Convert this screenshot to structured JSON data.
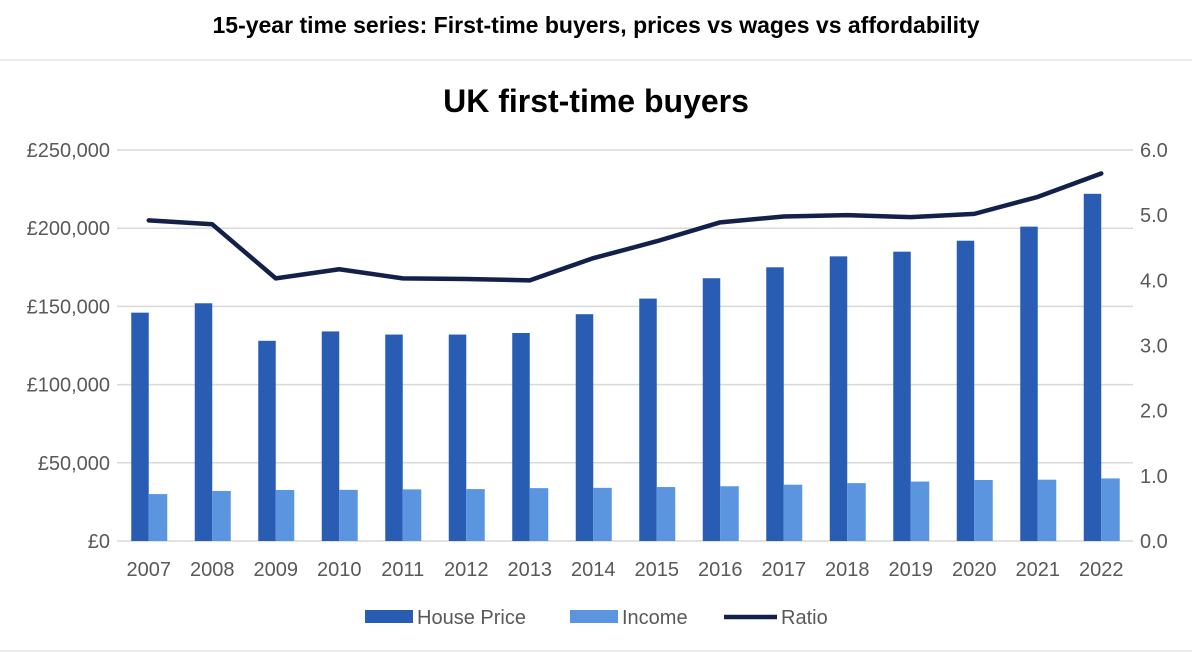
{
  "page_title": "15-year time series: First-time buyers, prices vs wages vs affordability",
  "colors": {
    "house_price": "#285DB3",
    "income": "#5B95E0",
    "ratio": "#13214A",
    "grid": "#D9D9D9"
  },
  "chart_data": {
    "type": "bar",
    "title": "UK first-time buyers",
    "categories": [
      "2007",
      "2008",
      "2009",
      "2010",
      "2011",
      "2012",
      "2013",
      "2014",
      "2015",
      "2016",
      "2017",
      "2018",
      "2019",
      "2020",
      "2021",
      "2022"
    ],
    "series": [
      {
        "name": "House Price",
        "type": "bar",
        "axis": "left",
        "values": [
          146000,
          152000,
          128000,
          134000,
          132000,
          132000,
          133000,
          145000,
          155000,
          168000,
          175000,
          182000,
          185000,
          192000,
          201000,
          222000
        ]
      },
      {
        "name": "Income",
        "type": "bar",
        "axis": "left",
        "values": [
          30000,
          32000,
          32600,
          32700,
          33000,
          33200,
          33800,
          34000,
          34500,
          35000,
          36000,
          37000,
          38000,
          39000,
          39200,
          40000
        ]
      },
      {
        "name": "Ratio",
        "type": "line",
        "axis": "right",
        "values": [
          4.92,
          4.86,
          4.03,
          4.17,
          4.03,
          4.02,
          4.0,
          4.34,
          4.6,
          4.89,
          4.98,
          5.0,
          4.97,
          5.02,
          5.28,
          5.64
        ]
      }
    ],
    "left_axis": {
      "ylim": [
        0,
        250000
      ],
      "ticks": [
        "£0",
        "£50,000",
        "£100,000",
        "£150,000",
        "£200,000",
        "£250,000"
      ]
    },
    "right_axis": {
      "ylim": [
        0,
        6
      ],
      "ticks": [
        "0.0",
        "1.0",
        "2.0",
        "3.0",
        "4.0",
        "5.0",
        "6.0"
      ]
    },
    "grid": true,
    "legend_position": "bottom"
  }
}
